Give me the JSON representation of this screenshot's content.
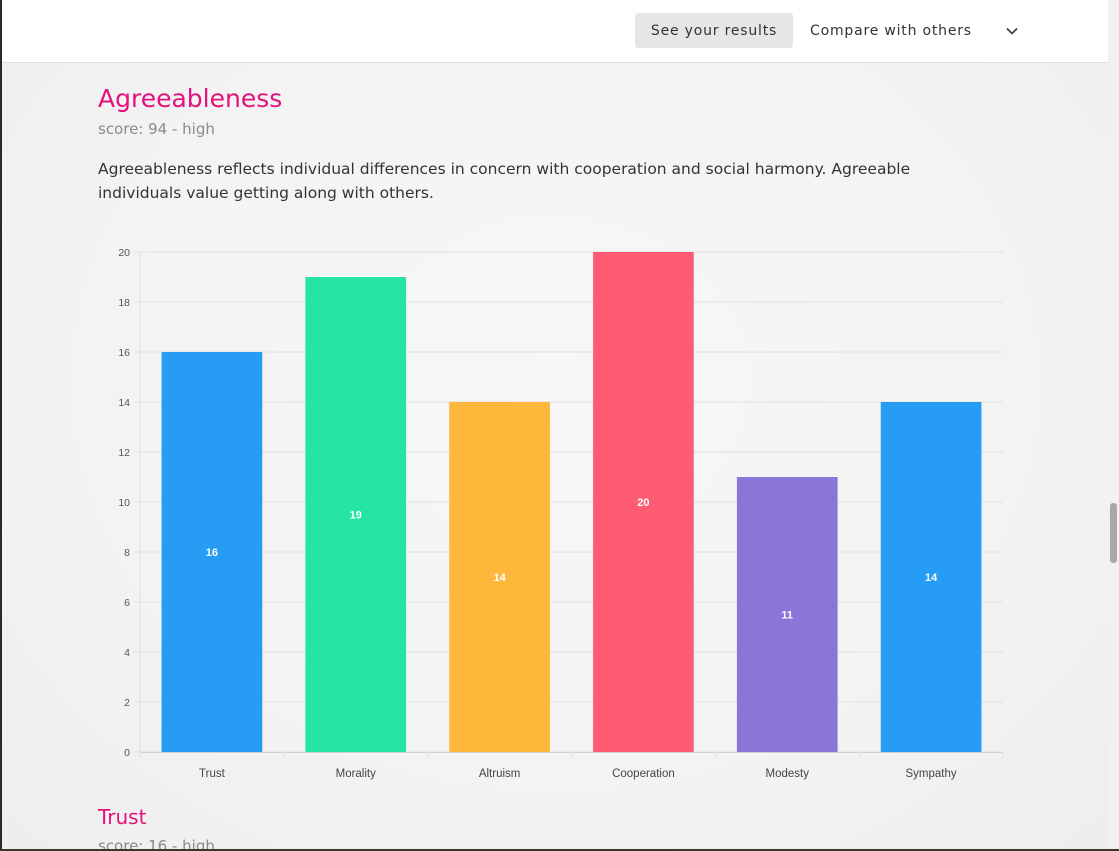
{
  "topbar": {
    "results_label": "See your results",
    "compare_label": "Compare with others"
  },
  "section": {
    "title": "Agreeableness",
    "score": "score: 94 - high",
    "description": "Agreeableness reflects individual differences in concern with cooperation and social harmony. Agreeable individuals value getting along with others."
  },
  "chart_data": {
    "type": "bar",
    "categories": [
      "Trust",
      "Morality",
      "Altruism",
      "Cooperation",
      "Modesty",
      "Sympathy"
    ],
    "values": [
      16,
      19,
      14,
      20,
      11,
      14
    ],
    "colors": [
      "#269cf5",
      "#26e5a2",
      "#fdb83b",
      "#fe5c75",
      "#8a75d8",
      "#269cf5"
    ],
    "ylim": [
      0,
      20
    ],
    "yticks": [
      0,
      2,
      4,
      6,
      8,
      10,
      12,
      14,
      16,
      18,
      20
    ],
    "grid": true,
    "data_labels": true
  },
  "next_section": {
    "title": "Trust",
    "score": "score: 16 - high"
  }
}
